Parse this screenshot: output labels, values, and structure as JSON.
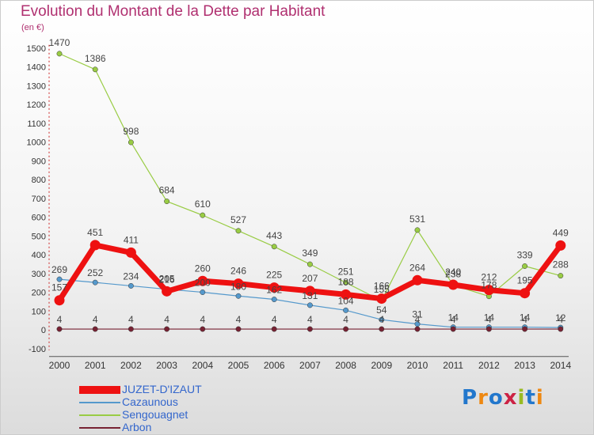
{
  "title": "Evolution du Montant de la Dette par Habitant",
  "unit_label": "(en €)",
  "logo_text": "Proxiti",
  "chart_data": {
    "type": "line",
    "title": "Evolution du Montant de la Dette par Habitant",
    "ylabel": "(en €)",
    "xlabel": "",
    "ylim": [
      -100,
      1500
    ],
    "yticks": [
      -100,
      0,
      100,
      200,
      300,
      400,
      500,
      600,
      700,
      800,
      900,
      1000,
      1100,
      1200,
      1300,
      1400,
      1500
    ],
    "x": [
      "2000",
      "2001",
      "2002",
      "2003",
      "2004",
      "2005",
      "2006",
      "2007",
      "2008",
      "2009",
      "2010",
      "2011",
      "2012",
      "2013",
      "2014"
    ],
    "grid": false,
    "legend_position": "bottom-left",
    "series": [
      {
        "name": "Sengouagnet",
        "color": "#99cc44",
        "values": [
          1470,
          1386,
          998,
          684,
          610,
          527,
          443,
          349,
          251,
          155,
          531,
          238,
          178,
          339,
          288
        ]
      },
      {
        "name": "Cazaunous",
        "color": "#5599cc",
        "values": [
          269,
          252,
          234,
          216,
          200,
          180,
          162,
          131,
          104,
          54,
          31,
          14,
          14,
          14,
          12
        ]
      },
      {
        "name": "Arbon",
        "color": "#772233",
        "values": [
          4,
          4,
          4,
          4,
          4,
          4,
          4,
          4,
          4,
          4,
          4,
          4,
          4,
          4,
          4
        ]
      },
      {
        "name": "JUZET-D'IZAUT",
        "color": "#ee1111",
        "values": [
          157,
          451,
          411,
          205,
          260,
          246,
          225,
          207,
          188,
          166,
          264,
          240,
          212,
          195,
          449
        ]
      }
    ]
  }
}
